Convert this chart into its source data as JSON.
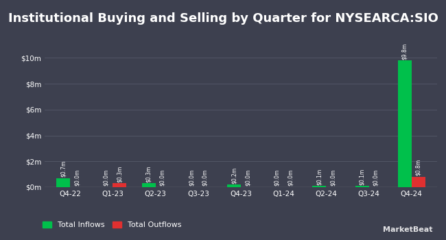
{
  "title": "Institutional Buying and Selling by Quarter for NYSEARCA:SIO",
  "quarters": [
    "Q4-22",
    "Q1-23",
    "Q2-23",
    "Q3-23",
    "Q4-23",
    "Q1-24",
    "Q2-24",
    "Q3-24",
    "Q4-24"
  ],
  "inflows": [
    0.7,
    0.0,
    0.3,
    0.0,
    0.2,
    0.0,
    0.1,
    0.1,
    9.8
  ],
  "outflows": [
    0.0,
    0.3,
    0.0,
    0.0,
    0.0,
    0.0,
    0.0,
    0.0,
    0.8
  ],
  "inflow_labels": [
    "$0.7m",
    "$0.0m",
    "$0.3m",
    "$0.0m",
    "$0.2m",
    "$0.0m",
    "$0.1m",
    "$0.1m",
    "$9.8m"
  ],
  "outflow_labels": [
    "$0.0m",
    "$0.3m",
    "$0.0m",
    "$0.0m",
    "$0.0m",
    "$0.0m",
    "$0.0m",
    "$0.0m",
    "$0.8m"
  ],
  "inflow_color": "#00c04b",
  "outflow_color": "#e03030",
  "background_color": "#3d404f",
  "text_color": "#ffffff",
  "grid_color": "#565a6a",
  "ylim": [
    0,
    11.5
  ],
  "yticks": [
    0,
    2,
    4,
    6,
    8,
    10
  ],
  "ytick_labels": [
    "$0m",
    "$2m",
    "$4m",
    "$6m",
    "$8m",
    "$10m"
  ],
  "bar_width": 0.32,
  "title_fontsize": 13,
  "label_fontsize": 5.5,
  "tick_fontsize": 7.5,
  "legend_labels": [
    "Total Inflows",
    "Total Outflows"
  ]
}
